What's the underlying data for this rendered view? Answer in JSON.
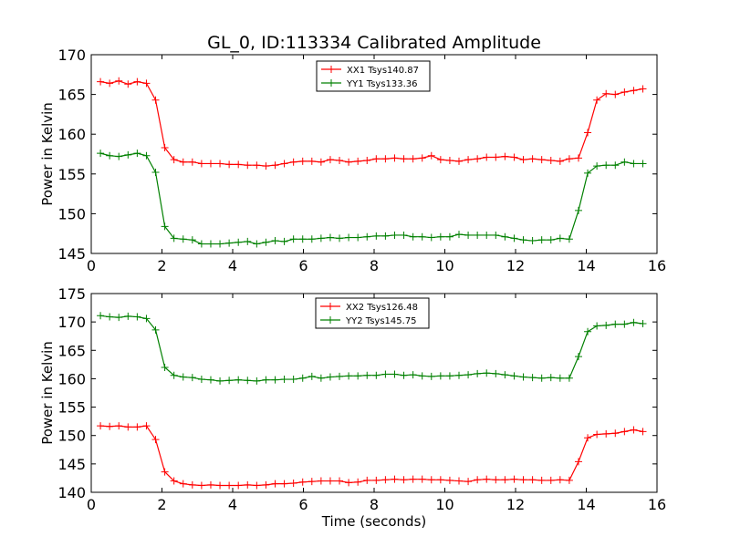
{
  "title": "GL_0, ID:113334 Calibrated Amplitude",
  "chart_data": [
    {
      "type": "line",
      "title": "GL_0, ID:113334 Calibrated Amplitude",
      "xlabel": "",
      "ylabel": "Power in Kelvin",
      "xlim": [
        0,
        16
      ],
      "ylim": [
        145,
        170
      ],
      "xticks": [
        0,
        2,
        4,
        6,
        8,
        10,
        12,
        14,
        16
      ],
      "yticks": [
        145,
        150,
        155,
        160,
        165,
        170
      ],
      "grid": false,
      "legend": "top-center",
      "x": [
        0.26,
        0.52,
        0.78,
        1.04,
        1.3,
        1.56,
        1.82,
        2.08,
        2.34,
        2.6,
        2.86,
        3.12,
        3.38,
        3.64,
        3.9,
        4.16,
        4.42,
        4.68,
        4.94,
        5.2,
        5.46,
        5.72,
        5.98,
        6.24,
        6.5,
        6.76,
        7.02,
        7.28,
        7.54,
        7.8,
        8.06,
        8.32,
        8.58,
        8.84,
        9.1,
        9.36,
        9.62,
        9.88,
        10.14,
        10.4,
        10.66,
        10.92,
        11.18,
        11.44,
        11.7,
        11.96,
        12.22,
        12.48,
        12.74,
        13.0,
        13.26,
        13.52,
        13.78,
        14.04,
        14.3,
        14.56,
        14.82,
        15.08,
        15.34,
        15.6
      ],
      "series": [
        {
          "name": "XX1 Tsys140.87",
          "color": "#ff0000",
          "values": [
            166.6,
            166.4,
            166.7,
            166.3,
            166.6,
            166.4,
            164.3,
            158.3,
            156.8,
            156.5,
            156.5,
            156.3,
            156.3,
            156.3,
            156.2,
            156.2,
            156.1,
            156.1,
            156.0,
            156.1,
            156.3,
            156.5,
            156.6,
            156.6,
            156.5,
            156.8,
            156.7,
            156.5,
            156.6,
            156.7,
            156.9,
            156.9,
            157.0,
            156.9,
            156.9,
            157.0,
            157.3,
            156.8,
            156.7,
            156.6,
            156.8,
            156.9,
            157.1,
            157.1,
            157.2,
            157.1,
            156.8,
            156.9,
            156.8,
            156.7,
            156.6,
            156.9,
            157.0,
            160.2,
            164.3,
            165.1,
            165.0,
            165.3,
            165.5,
            165.7
          ]
        },
        {
          "name": "YY1 Tsys133.36",
          "color": "#008000",
          "values": [
            157.6,
            157.3,
            157.2,
            157.4,
            157.6,
            157.3,
            155.2,
            148.4,
            146.9,
            146.8,
            146.7,
            146.2,
            146.2,
            146.2,
            146.3,
            146.4,
            146.5,
            146.2,
            146.4,
            146.6,
            146.5,
            146.8,
            146.8,
            146.8,
            146.9,
            147.0,
            146.9,
            147.0,
            147.0,
            147.1,
            147.2,
            147.2,
            147.3,
            147.3,
            147.1,
            147.1,
            147.0,
            147.1,
            147.1,
            147.4,
            147.3,
            147.3,
            147.3,
            147.3,
            147.1,
            146.9,
            146.7,
            146.6,
            146.7,
            146.7,
            146.9,
            146.8,
            150.4,
            155.1,
            156.0,
            156.1,
            156.1,
            156.5,
            156.3,
            156.3
          ]
        }
      ]
    },
    {
      "type": "line",
      "title": "",
      "xlabel": "Time (seconds)",
      "ylabel": "Power in Kelvin",
      "xlim": [
        0,
        16
      ],
      "ylim": [
        140,
        175
      ],
      "xticks": [
        0,
        2,
        4,
        6,
        8,
        10,
        12,
        14,
        16
      ],
      "yticks": [
        140,
        145,
        150,
        155,
        160,
        165,
        170,
        175
      ],
      "grid": false,
      "legend": "top-center",
      "x": [
        0.26,
        0.52,
        0.78,
        1.04,
        1.3,
        1.56,
        1.82,
        2.08,
        2.34,
        2.6,
        2.86,
        3.12,
        3.38,
        3.64,
        3.9,
        4.16,
        4.42,
        4.68,
        4.94,
        5.2,
        5.46,
        5.72,
        5.98,
        6.24,
        6.5,
        6.76,
        7.02,
        7.28,
        7.54,
        7.8,
        8.06,
        8.32,
        8.58,
        8.84,
        9.1,
        9.36,
        9.62,
        9.88,
        10.14,
        10.4,
        10.66,
        10.92,
        11.18,
        11.44,
        11.7,
        11.96,
        12.22,
        12.48,
        12.74,
        13.0,
        13.26,
        13.52,
        13.78,
        14.04,
        14.3,
        14.56,
        14.82,
        15.08,
        15.34,
        15.6
      ],
      "series": [
        {
          "name": "XX2 Tsys126.48",
          "color": "#ff0000",
          "values": [
            151.7,
            151.6,
            151.7,
            151.5,
            151.5,
            151.7,
            149.3,
            143.6,
            142.0,
            141.5,
            141.3,
            141.2,
            141.3,
            141.2,
            141.2,
            141.2,
            141.3,
            141.2,
            141.3,
            141.5,
            141.5,
            141.6,
            141.8,
            141.9,
            142.0,
            142.0,
            142.0,
            141.7,
            141.8,
            142.1,
            142.1,
            142.2,
            142.3,
            142.2,
            142.3,
            142.3,
            142.2,
            142.2,
            142.1,
            142.0,
            141.9,
            142.2,
            142.3,
            142.2,
            142.2,
            142.3,
            142.2,
            142.2,
            142.1,
            142.1,
            142.2,
            142.1,
            145.4,
            149.6,
            150.2,
            150.3,
            150.4,
            150.7,
            151.0,
            150.7
          ]
        },
        {
          "name": "YY2 Tsys145.75",
          "color": "#008000",
          "values": [
            171.1,
            170.9,
            170.8,
            171.0,
            170.9,
            170.6,
            168.6,
            162.0,
            160.6,
            160.3,
            160.2,
            159.9,
            159.8,
            159.6,
            159.7,
            159.8,
            159.7,
            159.6,
            159.8,
            159.8,
            159.9,
            159.9,
            160.1,
            160.4,
            160.1,
            160.3,
            160.4,
            160.5,
            160.5,
            160.6,
            160.6,
            160.8,
            160.8,
            160.6,
            160.7,
            160.5,
            160.4,
            160.5,
            160.5,
            160.6,
            160.7,
            160.9,
            161.0,
            160.9,
            160.7,
            160.5,
            160.3,
            160.2,
            160.1,
            160.2,
            160.1,
            160.1,
            163.9,
            168.3,
            169.3,
            169.4,
            169.6,
            169.6,
            169.9,
            169.7
          ]
        }
      ]
    }
  ]
}
